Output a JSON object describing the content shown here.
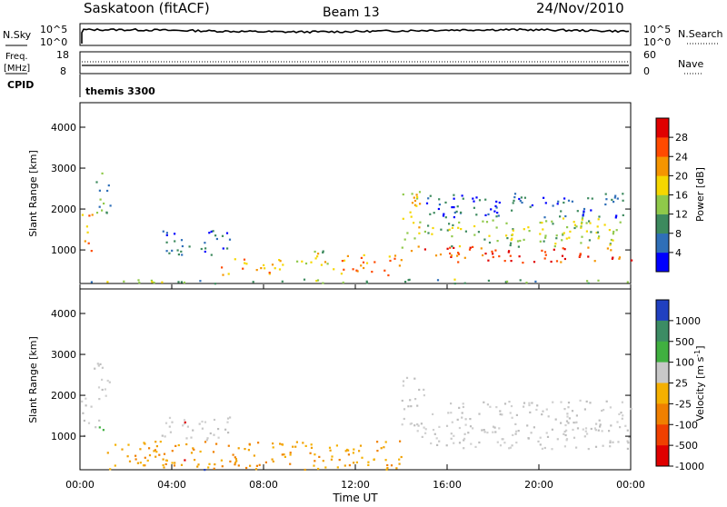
{
  "header": {
    "station": "Saskatoon (fitACF)",
    "beam": "Beam 13",
    "date": "24/Nov/2010"
  },
  "nsky_panel": {
    "left_label": "N.Sky",
    "right_label": "N.Search",
    "left_ticks": [
      "10^5",
      "10^0"
    ],
    "right_ticks": [
      "10^5",
      "10^0"
    ]
  },
  "freq_panel": {
    "left_label_line1": "Freq.",
    "left_label_line2": "[MHz]",
    "right_label": "Nave",
    "left_ticks": [
      "18",
      "8"
    ],
    "right_ticks": [
      "60",
      "0"
    ]
  },
  "cpid_panel": {
    "label": "CPID",
    "program": "themis 3300"
  },
  "chart_data": [
    {
      "type": "heatmap",
      "quantity": "power",
      "ylabel": "Slant Range [km]",
      "xlabel": "",
      "ylim": [
        180,
        4600
      ],
      "xlim_hours": [
        0,
        24
      ],
      "y_ticks": [
        1000,
        2000,
        3000,
        4000
      ],
      "colorbar_label": "Power [dB]",
      "colorbar_ticks": [
        "4",
        "8",
        "12",
        "16",
        "20",
        "24",
        "28"
      ],
      "colorbar_colors": [
        "#0000ff",
        "#2f6fb8",
        "#3d8a5e",
        "#8fc94a",
        "#f5d700",
        "#f59500",
        "#ff4a00",
        "#e00000"
      ],
      "scatter_regions": [
        {
          "t0": 0.0,
          "t1": 0.5,
          "r0": 1000,
          "r1": 2000,
          "v": 22
        },
        {
          "t0": 0.5,
          "t1": 1.3,
          "r0": 1900,
          "r1": 2900,
          "v": 10
        },
        {
          "t0": 3.4,
          "t1": 6.5,
          "r0": 900,
          "r1": 1500,
          "v": 6
        },
        {
          "t0": 6.0,
          "t1": 9.0,
          "r0": 400,
          "r1": 800,
          "v": 22
        },
        {
          "t0": 9.0,
          "t1": 11.0,
          "r0": 600,
          "r1": 1000,
          "v": 15
        },
        {
          "t0": 11.0,
          "t1": 14.0,
          "r0": 400,
          "r1": 900,
          "v": 22
        },
        {
          "t0": 14.0,
          "t1": 15.0,
          "r0": 1000,
          "r1": 2500,
          "v": 18
        },
        {
          "t0": 15.0,
          "t1": 24.0,
          "r0": 700,
          "r1": 1100,
          "v": 26
        },
        {
          "t0": 15.0,
          "t1": 24.0,
          "r0": 1100,
          "r1": 1800,
          "v": 14
        },
        {
          "t0": 15.0,
          "t1": 24.0,
          "r0": 1800,
          "r1": 2400,
          "v": 6
        },
        {
          "t0": 0.0,
          "t1": 24.0,
          "r0": 200,
          "r1": 300,
          "v": 12
        }
      ]
    },
    {
      "type": "heatmap",
      "quantity": "velocity",
      "ylabel": "Slant Range [km]",
      "xlabel": "Time UT",
      "ylim": [
        180,
        4600
      ],
      "xlim_hours": [
        0,
        24
      ],
      "y_ticks": [
        1000,
        2000,
        3000,
        4000
      ],
      "x_ticks": [
        "00:00",
        "04:00",
        "08:00",
        "12:00",
        "16:00",
        "20:00",
        "00:00"
      ],
      "colorbar_label": "Velocity [m s^-1]",
      "colorbar_ticks": [
        "1000",
        "500",
        "100",
        "25",
        "-25",
        "-100",
        "-500",
        "-1000"
      ],
      "colorbar_colors": [
        "#2040c0",
        "#3c8c64",
        "#40b040",
        "#c8c8c8",
        "#f5b000",
        "#f08000",
        "#f04000",
        "#e00000"
      ],
      "scatter_regions": [
        {
          "t0": 0.0,
          "t1": 0.5,
          "r0": 1000,
          "r1": 2000,
          "v": "gray"
        },
        {
          "t0": 0.5,
          "t1": 1.0,
          "r0": 1000,
          "r1": 1500,
          "v": "green"
        },
        {
          "t0": 0.5,
          "t1": 1.3,
          "r0": 1900,
          "r1": 2900,
          "v": "gray"
        },
        {
          "t0": 3.4,
          "t1": 6.5,
          "r0": 900,
          "r1": 1500,
          "v": "gray"
        },
        {
          "t0": 1.0,
          "t1": 14.0,
          "r0": 200,
          "r1": 900,
          "v": "orange"
        },
        {
          "t0": 14.0,
          "t1": 15.0,
          "r0": 1000,
          "r1": 2500,
          "v": "gray"
        },
        {
          "t0": 15.0,
          "t1": 24.0,
          "r0": 700,
          "r1": 1900,
          "v": "gray"
        }
      ]
    }
  ]
}
